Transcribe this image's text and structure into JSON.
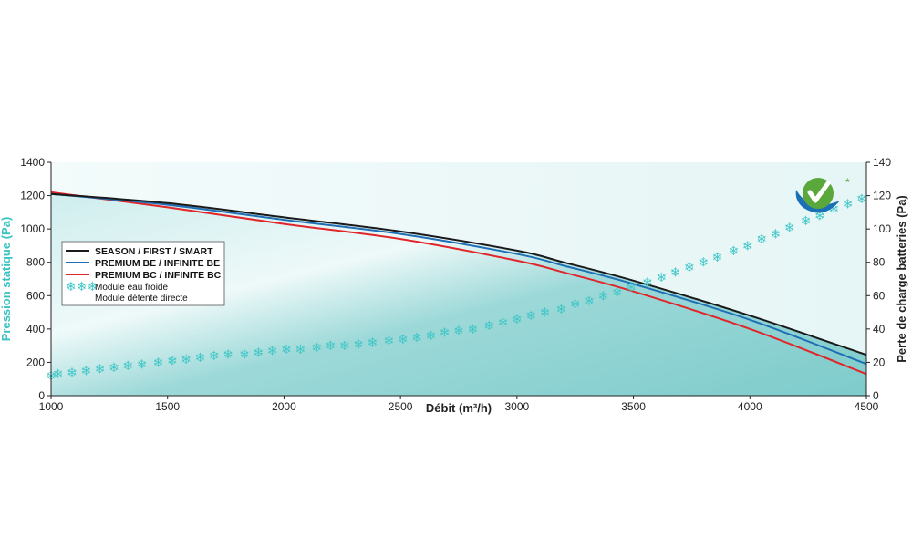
{
  "colors": {
    "plot_bg_light": "#eef8f8",
    "fill_teal": "#7ecfcf",
    "teal_text": "#38c2c2",
    "series_black": "#1a1a1a",
    "series_blue": "#1f6fb6",
    "series_red": "#e0262a",
    "snowflake": "#3fc6c6",
    "logo_green": "#5aa83c",
    "logo_blue": "#1a6fb5"
  },
  "chart_data": {
    "type": "line",
    "xlabel": "Débit (m³/h)",
    "ylabel": "Pression statique (Pa)",
    "y2label": "Perte de charge batteries (Pa)",
    "xlim": [
      1000,
      4500
    ],
    "ylim": [
      0,
      1400
    ],
    "y2lim": [
      0,
      140
    ],
    "x_ticks": [
      "1000",
      "1500",
      "2000",
      "2500",
      "3000",
      "3500",
      "4000",
      "4500"
    ],
    "y_ticks": [
      "0",
      "200",
      "400",
      "600",
      "800",
      "1000",
      "1200",
      "1400"
    ],
    "y2_ticks": [
      "0",
      "20",
      "40",
      "60",
      "80",
      "100",
      "120",
      "140"
    ],
    "grid": false,
    "legend_position": "left",
    "series": [
      {
        "name": "SEASON / FIRST / SMART",
        "color_key": "series_black",
        "axis": "left",
        "points": [
          [
            1000,
            1210
          ],
          [
            1500,
            1155
          ],
          [
            2000,
            1070
          ],
          [
            2500,
            985
          ],
          [
            3000,
            870
          ],
          [
            3200,
            800
          ],
          [
            3500,
            690
          ],
          [
            4000,
            480
          ],
          [
            4500,
            245
          ]
        ]
      },
      {
        "name": "PREMIUM BE / INFINITE BE",
        "color_key": "series_blue",
        "axis": "left",
        "points": [
          [
            1000,
            1210
          ],
          [
            1500,
            1145
          ],
          [
            2000,
            1055
          ],
          [
            2500,
            970
          ],
          [
            3000,
            850
          ],
          [
            3200,
            780
          ],
          [
            3500,
            670
          ],
          [
            4000,
            455
          ],
          [
            4500,
            190
          ]
        ]
      },
      {
        "name": "PREMIUM BC / INFINITE BC",
        "color_key": "series_red",
        "axis": "left",
        "points": [
          [
            1000,
            1220
          ],
          [
            1500,
            1130
          ],
          [
            2000,
            1030
          ],
          [
            2500,
            940
          ],
          [
            3000,
            810
          ],
          [
            3200,
            740
          ],
          [
            3500,
            625
          ],
          [
            4000,
            400
          ],
          [
            4500,
            130
          ]
        ]
      }
    ],
    "marker_series": {
      "legend_lines": [
        "Module eau froide",
        "Module détente directe"
      ],
      "axis": "right",
      "symbol": "❄",
      "points": [
        [
          1000,
          12
        ],
        [
          1030,
          13
        ],
        [
          1090,
          14
        ],
        [
          1150,
          15
        ],
        [
          1210,
          16
        ],
        [
          1270,
          17
        ],
        [
          1330,
          18
        ],
        [
          1390,
          19
        ],
        [
          1460,
          20
        ],
        [
          1520,
          21
        ],
        [
          1580,
          22
        ],
        [
          1640,
          23
        ],
        [
          1700,
          24
        ],
        [
          1760,
          25
        ],
        [
          1830,
          25
        ],
        [
          1890,
          26
        ],
        [
          1950,
          27
        ],
        [
          2010,
          28
        ],
        [
          2070,
          28
        ],
        [
          2140,
          29
        ],
        [
          2200,
          30
        ],
        [
          2260,
          30
        ],
        [
          2320,
          31
        ],
        [
          2380,
          32
        ],
        [
          2450,
          33
        ],
        [
          2510,
          34
        ],
        [
          2570,
          35
        ],
        [
          2630,
          36
        ],
        [
          2690,
          38
        ],
        [
          2750,
          39
        ],
        [
          2810,
          40
        ],
        [
          2880,
          42
        ],
        [
          2940,
          44
        ],
        [
          3000,
          46
        ],
        [
          3060,
          48
        ],
        [
          3120,
          50
        ],
        [
          3190,
          52
        ],
        [
          3250,
          55
        ],
        [
          3310,
          57
        ],
        [
          3370,
          60
        ],
        [
          3430,
          62
        ],
        [
          3490,
          65
        ],
        [
          3560,
          68
        ],
        [
          3620,
          71
        ],
        [
          3680,
          74
        ],
        [
          3740,
          77
        ],
        [
          3800,
          80
        ],
        [
          3860,
          83
        ],
        [
          3930,
          87
        ],
        [
          3990,
          90
        ],
        [
          4050,
          94
        ],
        [
          4110,
          97
        ],
        [
          4170,
          101
        ],
        [
          4240,
          105
        ],
        [
          4300,
          108
        ],
        [
          4360,
          112
        ],
        [
          4420,
          115
        ],
        [
          4480,
          118
        ]
      ]
    }
  }
}
